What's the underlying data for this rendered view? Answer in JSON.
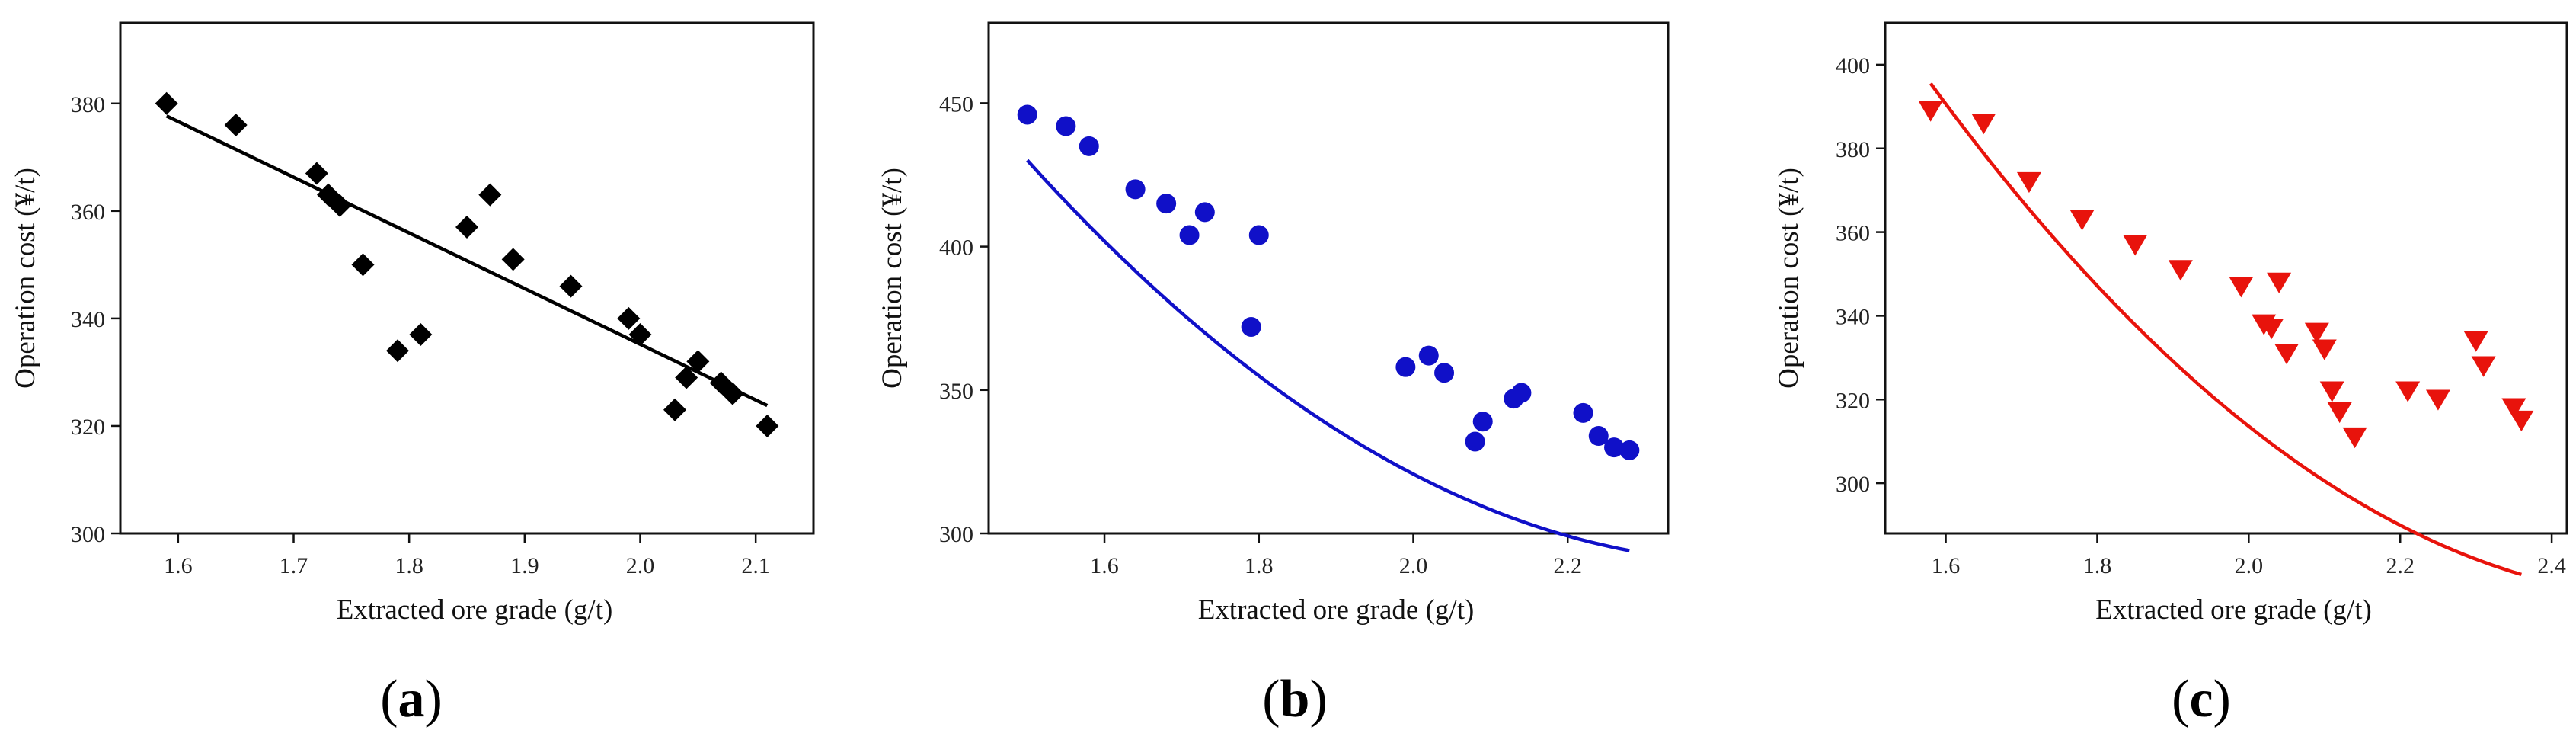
{
  "chart_data": [
    {
      "type": "scatter",
      "panel": "(a)",
      "panel_letter": "a",
      "xlabel": "Extracted ore grade (g/t)",
      "ylabel": "Operation cost (¥/t)",
      "xlim": [
        1.55,
        2.15
      ],
      "ylim": [
        300,
        395
      ],
      "xticks": [
        1.6,
        1.7,
        1.8,
        1.9,
        2.0,
        2.1
      ],
      "xtick_labels": [
        "1.6",
        "1.7",
        "1.8",
        "1.9",
        "2.0",
        "2.1"
      ],
      "yticks": [
        300,
        320,
        340,
        360,
        380
      ],
      "ytick_labels": [
        "300",
        "320",
        "340",
        "360",
        "380"
      ],
      "marker": "diamond",
      "color": "#000000",
      "points": [
        [
          1.59,
          380
        ],
        [
          1.65,
          376
        ],
        [
          1.72,
          367
        ],
        [
          1.73,
          363
        ],
        [
          1.74,
          361
        ],
        [
          1.76,
          350
        ],
        [
          1.79,
          334
        ],
        [
          1.81,
          337
        ],
        [
          1.85,
          357
        ],
        [
          1.87,
          363
        ],
        [
          1.89,
          351
        ],
        [
          1.94,
          346
        ],
        [
          1.99,
          340
        ],
        [
          2.0,
          337
        ],
        [
          2.03,
          323
        ],
        [
          2.04,
          329
        ],
        [
          2.05,
          332
        ],
        [
          2.07,
          328
        ],
        [
          2.08,
          326
        ],
        [
          2.11,
          320
        ]
      ],
      "fit": {
        "kind": "linear",
        "x_range": [
          1.59,
          2.11
        ],
        "coefficients": [
          542.4,
          -103.6
        ]
      }
    },
    {
      "type": "scatter",
      "panel": "(b)",
      "panel_letter": "b",
      "xlabel": "Extracted ore grade (g/t)",
      "ylabel": "Operation cost (¥/t)",
      "xlim": [
        1.45,
        2.33
      ],
      "ylim": [
        300,
        478
      ],
      "xticks": [
        1.6,
        1.8,
        2.0,
        2.2
      ],
      "xtick_labels": [
        "1.6",
        "1.8",
        "2.0",
        "2.2"
      ],
      "yticks": [
        300,
        350,
        400,
        450
      ],
      "ytick_labels": [
        "300",
        "350",
        "400",
        "450"
      ],
      "marker": "circle",
      "color": "#1010c8",
      "points": [
        [
          1.5,
          446
        ],
        [
          1.55,
          442
        ],
        [
          1.58,
          435
        ],
        [
          1.64,
          420
        ],
        [
          1.68,
          415
        ],
        [
          1.71,
          404
        ],
        [
          1.73,
          412
        ],
        [
          1.79,
          372
        ],
        [
          1.8,
          404
        ],
        [
          1.99,
          358
        ],
        [
          2.02,
          362
        ],
        [
          2.04,
          356
        ],
        [
          2.08,
          332
        ],
        [
          2.09,
          339
        ],
        [
          2.13,
          347
        ],
        [
          2.14,
          349
        ],
        [
          2.22,
          342
        ],
        [
          2.24,
          334
        ],
        [
          2.26,
          330
        ],
        [
          2.28,
          329
        ]
      ],
      "fit": {
        "kind": "quadratic",
        "x_range": [
          1.5,
          2.28
        ],
        "coefficients": [
          1233.5,
          -773.2,
          158.4
        ]
      }
    },
    {
      "type": "scatter",
      "panel": "(c)",
      "panel_letter": "c",
      "xlabel": "Extracted ore grade (g/t)",
      "ylabel": "Operation cost (¥/t)",
      "xlim": [
        1.52,
        2.42
      ],
      "ylim": [
        288,
        410
      ],
      "xticks": [
        1.6,
        1.8,
        2.0,
        2.2,
        2.4
      ],
      "xtick_labels": [
        "1.6",
        "1.8",
        "2.0",
        "2.2",
        "2.4"
      ],
      "yticks": [
        300,
        320,
        340,
        360,
        380,
        400
      ],
      "ytick_labels": [
        "300",
        "320",
        "340",
        "360",
        "380",
        "400"
      ],
      "marker": "triangle-down",
      "color": "#e8130c",
      "points": [
        [
          1.58,
          389
        ],
        [
          1.65,
          386
        ],
        [
          1.71,
          372
        ],
        [
          1.78,
          363
        ],
        [
          1.85,
          357
        ],
        [
          1.91,
          351
        ],
        [
          1.99,
          347
        ],
        [
          2.02,
          338
        ],
        [
          2.03,
          337
        ],
        [
          2.04,
          348
        ],
        [
          2.05,
          331
        ],
        [
          2.09,
          336
        ],
        [
          2.1,
          332
        ],
        [
          2.11,
          322
        ],
        [
          2.12,
          317
        ],
        [
          2.14,
          311
        ],
        [
          2.21,
          322
        ],
        [
          2.25,
          320
        ],
        [
          2.3,
          334
        ],
        [
          2.31,
          328
        ],
        [
          2.35,
          318
        ],
        [
          2.36,
          315
        ]
      ],
      "fit": {
        "kind": "quadratic",
        "x_range": [
          1.58,
          2.36
        ],
        "coefficients": [
          1095.2,
          -638.6,
          123.9
        ]
      }
    }
  ]
}
